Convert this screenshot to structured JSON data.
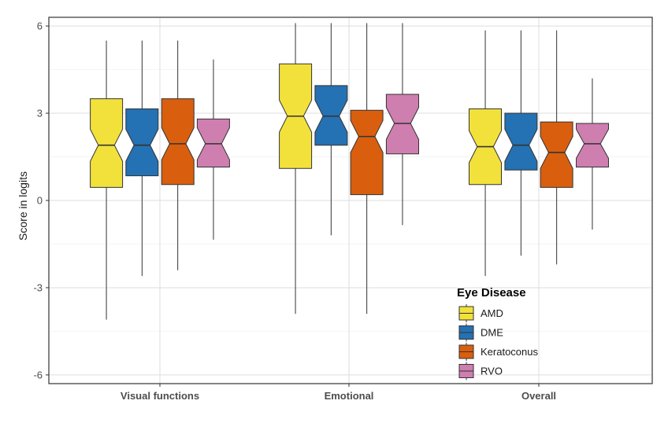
{
  "chart_data": {
    "type": "boxplot",
    "title": "",
    "xlabel": "",
    "ylabel": "Score in logits",
    "ylim": [
      -6.3,
      6.3
    ],
    "yticks": [
      6,
      3,
      0,
      -3,
      -6
    ],
    "ytick_labels": [
      "6",
      "3",
      "0",
      "-3",
      "-6"
    ],
    "grid": true,
    "notched": true,
    "categories": [
      "Visual functions",
      "Emotional",
      "Overall"
    ],
    "legend": {
      "title": "Eye Disease",
      "position": "bottom-right-inside"
    },
    "series": [
      {
        "name": "AMD",
        "color": "#f2e13a",
        "boxes": [
          {
            "whisker_low": -4.1,
            "q1": 0.45,
            "median": 1.9,
            "q3": 3.5,
            "whisker_high": 5.5
          },
          {
            "whisker_low": -3.9,
            "q1": 1.1,
            "median": 2.9,
            "q3": 4.7,
            "whisker_high": 6.1
          },
          {
            "whisker_low": -2.6,
            "q1": 0.55,
            "median": 1.85,
            "q3": 3.15,
            "whisker_high": 5.85
          }
        ]
      },
      {
        "name": "DME",
        "color": "#2471b3",
        "boxes": [
          {
            "whisker_low": -2.6,
            "q1": 0.85,
            "median": 1.9,
            "q3": 3.15,
            "whisker_high": 5.5
          },
          {
            "whisker_low": -1.2,
            "q1": 1.9,
            "median": 2.9,
            "q3": 3.95,
            "whisker_high": 6.1
          },
          {
            "whisker_low": -1.9,
            "q1": 1.05,
            "median": 1.9,
            "q3": 3.0,
            "whisker_high": 5.85
          }
        ]
      },
      {
        "name": "Keratoconus",
        "color": "#d95f0e",
        "boxes": [
          {
            "whisker_low": -2.4,
            "q1": 0.55,
            "median": 1.95,
            "q3": 3.5,
            "whisker_high": 5.5
          },
          {
            "whisker_low": -3.9,
            "q1": 0.2,
            "median": 2.2,
            "q3": 3.1,
            "whisker_high": 6.1
          },
          {
            "whisker_low": -2.2,
            "q1": 0.45,
            "median": 1.65,
            "q3": 2.7,
            "whisker_high": 5.85
          }
        ]
      },
      {
        "name": "RVO",
        "color": "#cf7eb0",
        "boxes": [
          {
            "whisker_low": -1.35,
            "q1": 1.15,
            "median": 1.95,
            "q3": 2.8,
            "whisker_high": 4.85
          },
          {
            "whisker_low": -0.85,
            "q1": 1.6,
            "median": 2.65,
            "q3": 3.65,
            "whisker_high": 6.1
          },
          {
            "whisker_low": -1.0,
            "q1": 1.15,
            "median": 1.95,
            "q3": 2.65,
            "whisker_high": 4.2
          }
        ]
      }
    ]
  }
}
